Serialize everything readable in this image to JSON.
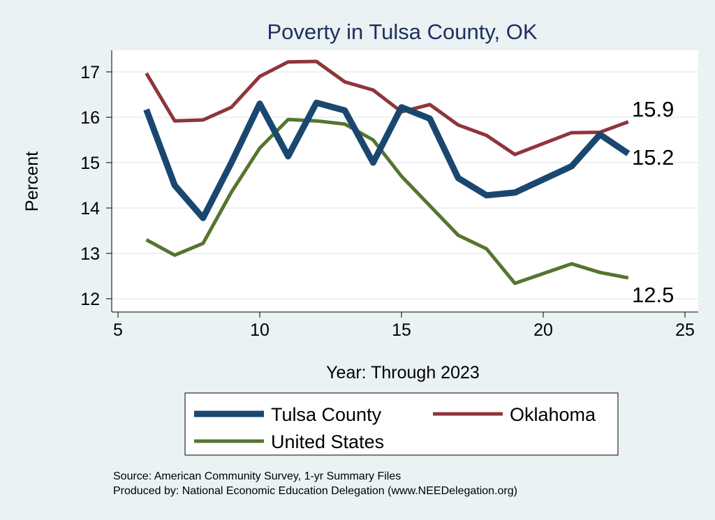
{
  "chart_data": {
    "type": "line",
    "title": "Poverty in Tulsa County, OK",
    "xlabel": "Year: Through 2023",
    "ylabel": "Percent",
    "xlim": [
      5,
      25
    ],
    "ylim": [
      12,
      17
    ],
    "xticks": [
      5,
      10,
      15,
      20,
      25
    ],
    "yticks": [
      12,
      13,
      14,
      15,
      16,
      17
    ],
    "grid": "horizontal",
    "legend_position": "bottom",
    "series": [
      {
        "name": "Tulsa County",
        "color": "#1a476f",
        "x": [
          6,
          7,
          8,
          9,
          10,
          11,
          12,
          13,
          14,
          15,
          16,
          17,
          18,
          19,
          21,
          22,
          23
        ],
        "y": [
          16.17,
          14.5,
          13.78,
          15.0,
          16.3,
          15.14,
          16.32,
          16.15,
          15.0,
          16.22,
          15.97,
          14.66,
          14.28,
          14.34,
          14.92,
          15.62,
          15.2
        ]
      },
      {
        "name": "Oklahoma",
        "color": "#90353b",
        "x": [
          6,
          7,
          8,
          9,
          10,
          11,
          12,
          13,
          14,
          15,
          16,
          17,
          18,
          19,
          21,
          22,
          23
        ],
        "y": [
          16.97,
          15.92,
          15.94,
          16.22,
          16.9,
          17.22,
          17.23,
          16.78,
          16.6,
          16.12,
          16.28,
          15.83,
          15.6,
          15.18,
          15.66,
          15.67,
          15.9
        ]
      },
      {
        "name": "United States",
        "color": "#55752f",
        "x": [
          6,
          7,
          8,
          9,
          10,
          11,
          12,
          13,
          14,
          15,
          16,
          17,
          18,
          19,
          21,
          22,
          23
        ],
        "y": [
          13.3,
          12.96,
          13.22,
          14.35,
          15.32,
          15.95,
          15.92,
          15.85,
          15.5,
          14.7,
          14.05,
          13.4,
          13.1,
          12.34,
          12.77,
          12.58,
          12.46
        ]
      }
    ],
    "annotations": [
      "15.9",
      "15.2",
      "12.5"
    ]
  },
  "notes": {
    "source": "Source: American Community Survey, 1-yr Summary Files",
    "produced": "Produced by: National Economic Education Delegation (www.NEEDelegation.org)"
  }
}
